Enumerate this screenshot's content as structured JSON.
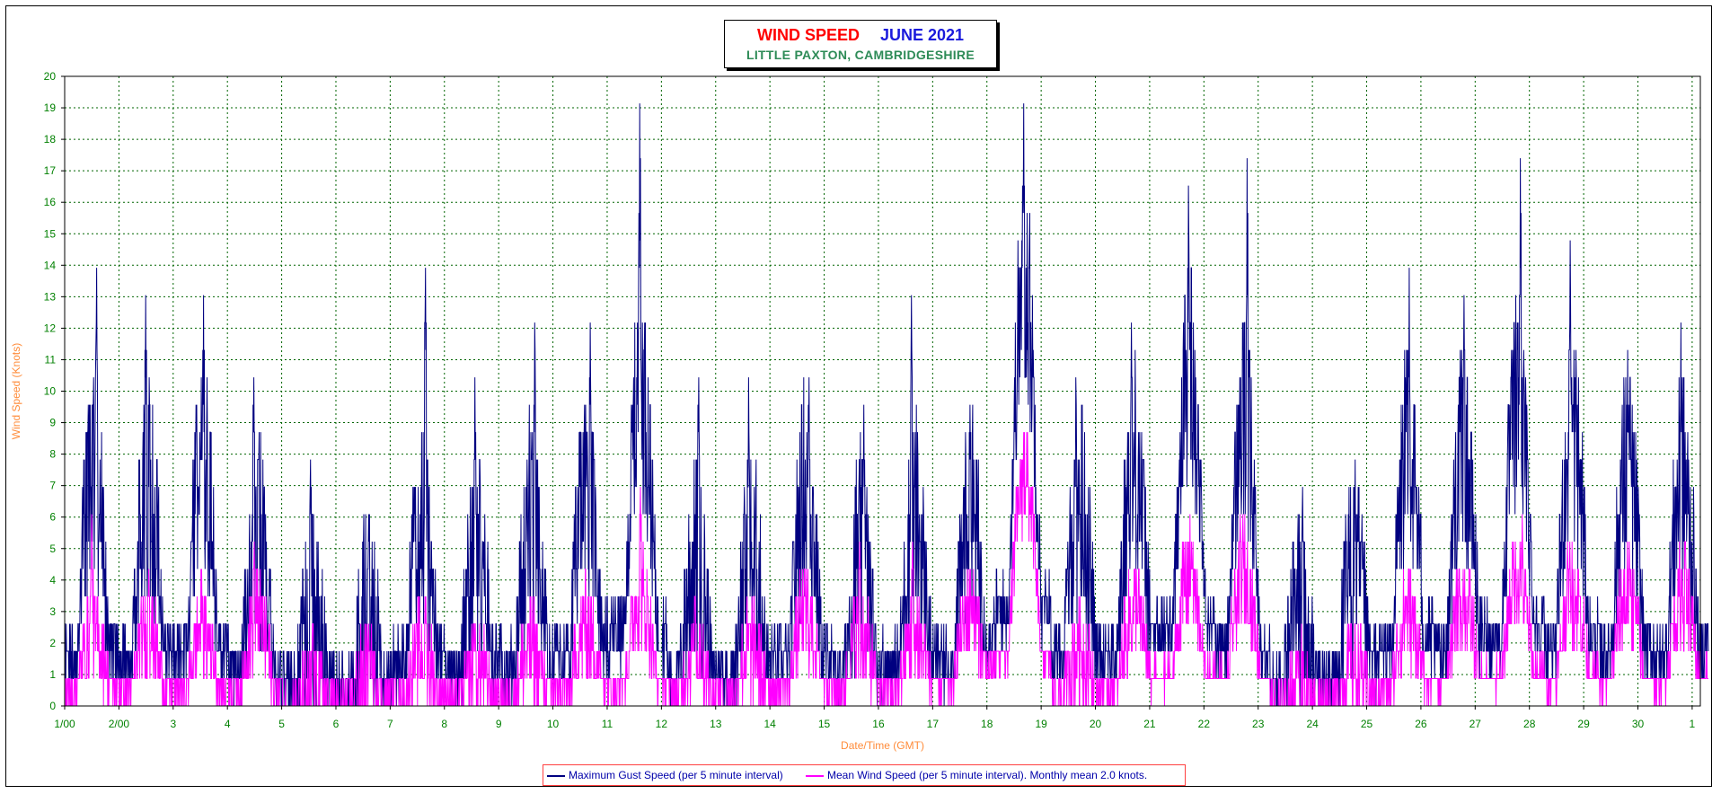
{
  "colors": {
    "gust": "#000080",
    "mean": "#ff00ff",
    "grid": "#006400",
    "tick_text": "#008000",
    "axis_title": "#ff8c3a",
    "title_red": "#ff0000",
    "title_blue": "#1a1adc",
    "title_green": "#2e8b57"
  },
  "title": {
    "main": "WIND SPEED",
    "month": "JUNE 2021",
    "location": "LITTLE PAXTON, CAMBRIDGESHIRE"
  },
  "legend": {
    "gust_label": "Maximum Gust Speed (per 5 minute interval)",
    "mean_label": "Mean Wind Speed (per 5 minute interval). Monthly mean 2.0 knots."
  },
  "chart_data": {
    "type": "line",
    "xlabel": "Date/Time (GMT)",
    "ylabel": "Wind Speed (Knots)",
    "ylim": [
      0,
      20
    ],
    "yticks": [
      0,
      1,
      2,
      3,
      4,
      5,
      6,
      7,
      8,
      9,
      10,
      11,
      12,
      13,
      14,
      15,
      16,
      17,
      18,
      19,
      20
    ],
    "xticks": [
      "1/00",
      "2/00",
      "3",
      "4",
      "5",
      "6",
      "7",
      "8",
      "9",
      "10",
      "11",
      "12",
      "13",
      "14",
      "15",
      "16",
      "17",
      "18",
      "19",
      "20",
      "21",
      "22",
      "23",
      "24",
      "25",
      "26",
      "27",
      "28",
      "29",
      "30",
      "1"
    ],
    "grid": true,
    "legend_position": "bottom",
    "sample_interval": "5 minutes",
    "monthly_mean_knots": 2.0,
    "series": [
      {
        "name": "Maximum Gust Speed (per 5 minute interval)",
        "daily_peak_knots": [
          13.9,
          13.0,
          13.0,
          10.4,
          7.8,
          6.1,
          13.9,
          10.4,
          12.2,
          12.2,
          19.1,
          10.4,
          10.4,
          10.4,
          9.6,
          13.0,
          9.6,
          19.1,
          10.4,
          12.2,
          16.5,
          17.4,
          7.0,
          7.8,
          13.9,
          13.0,
          17.4,
          14.8,
          11.3,
          12.2
        ],
        "daily_typical_knots": [
          6.5,
          6.0,
          6.5,
          4.5,
          2.5,
          2.5,
          5.0,
          4.0,
          5.0,
          6.0,
          9.0,
          4.0,
          4.0,
          6.0,
          4.0,
          5.0,
          5.0,
          12.0,
          5.5,
          6.5,
          9.5,
          8.0,
          2.5,
          3.5,
          7.0,
          7.0,
          8.5,
          7.5,
          6.5,
          6.0
        ]
      },
      {
        "name": "Mean Wind Speed (per 5 minute interval). Monthly mean 2.0 knots.",
        "daily_peak_knots": [
          6.1,
          4.3,
          3.5,
          5.2,
          2.6,
          1.7,
          3.5,
          2.6,
          2.6,
          3.5,
          7.0,
          3.5,
          2.6,
          4.3,
          5.2,
          5.2,
          3.5,
          8.7,
          2.6,
          3.5,
          5.2,
          6.1,
          1.7,
          1.7,
          3.5,
          4.3,
          6.1,
          5.2,
          4.3,
          5.2
        ],
        "daily_typical_knots": [
          2.0,
          2.0,
          2.0,
          2.5,
          0.5,
          0.8,
          1.5,
          1.0,
          1.5,
          2.0,
          3.0,
          1.5,
          1.5,
          2.5,
          2.0,
          2.0,
          2.5,
          6.5,
          1.5,
          2.5,
          3.5,
          3.8,
          0.5,
          1.0,
          2.5,
          2.8,
          3.5,
          3.2,
          3.0,
          3.0
        ]
      }
    ]
  }
}
